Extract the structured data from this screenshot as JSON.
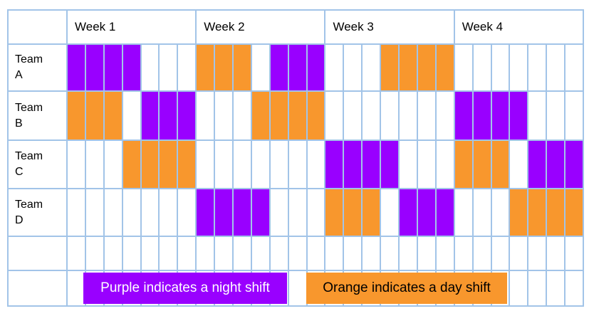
{
  "colors": {
    "night_purple": "#9900FF",
    "day_orange": "#F8972D",
    "grid_blue": "#A2C4E8"
  },
  "legend": {
    "night": {
      "label": "Purple indicates a night shift",
      "color": "#9900FF",
      "text_color": "#FFFFFF"
    },
    "day": {
      "label": "Orange indicates a day shift",
      "color": "#F8972D",
      "text_color": "#000000"
    }
  },
  "chart_data": {
    "type": "table",
    "description": "Gantt-style 4-week rotating shift schedule grid; 7 day columns per week; colored cells mark shifts",
    "weeks": [
      "Week 1",
      "Week 2",
      "Week 3",
      "Week 4"
    ],
    "columns_per_week": 7,
    "cell_encoding": {
      "N": "night shift (purple)",
      "D": "day shift (orange)",
      ".": "off / no shift"
    },
    "teams": [
      {
        "label": "Team A",
        "lines": [
          "Team",
          "A"
        ],
        "pattern": "NNNN...DDD.NNN...DDDD......."
      },
      {
        "label": "Team B",
        "lines": [
          "Team",
          "B"
        ],
        "pattern": "DDD.NNN...DDDD.......NNNN..."
      },
      {
        "label": "Team C",
        "lines": [
          "Team",
          "C"
        ],
        "pattern": "...DDDD.......NNNN...DDD.NNN"
      },
      {
        "label": "Team D",
        "lines": [
          "Team",
          "D"
        ],
        "pattern": ".......NNNN...DDD.NNN...DDDD"
      }
    ]
  }
}
